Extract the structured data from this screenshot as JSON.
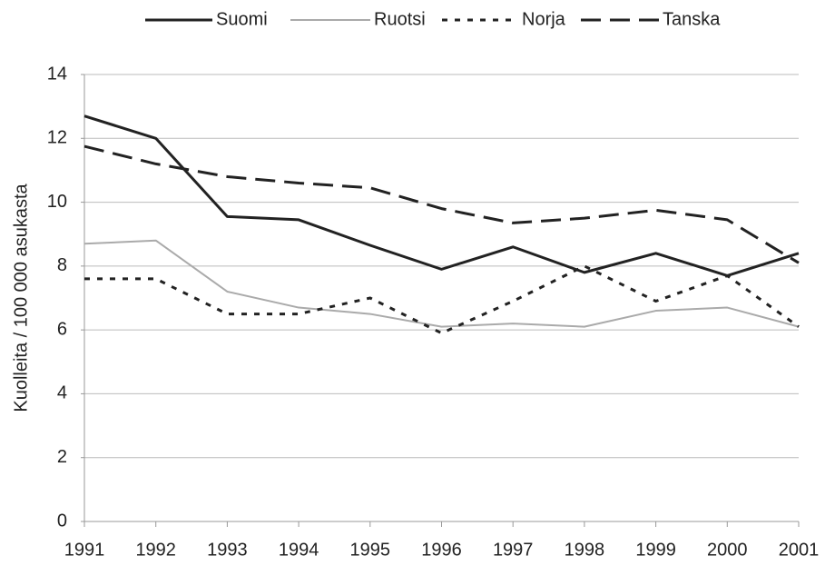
{
  "chart_data": {
    "type": "line",
    "y_label": "Kuolleita / 100 000 asukasta",
    "x": [
      1991,
      1992,
      1993,
      1994,
      1995,
      1996,
      1997,
      1998,
      1999,
      2000,
      2001
    ],
    "xlim": [
      1991,
      2001
    ],
    "xticks": [
      1991,
      1992,
      1993,
      1994,
      1995,
      1996,
      1997,
      1998,
      1999,
      2000,
      2001
    ],
    "ylim": [
      0,
      14
    ],
    "yticks": [
      0,
      2,
      4,
      6,
      8,
      10,
      12,
      14
    ],
    "grid": true,
    "legend": "top",
    "series": [
      {
        "name": "Suomi",
        "color": "#222222",
        "dash": "solid",
        "values": [
          12.7,
          12.0,
          9.55,
          9.45,
          8.65,
          7.9,
          8.6,
          7.8,
          8.4,
          7.7,
          8.4
        ]
      },
      {
        "name": "Ruotsi",
        "color": "#aaaaaa",
        "dash": "solid",
        "values": [
          8.7,
          8.8,
          7.2,
          6.7,
          6.5,
          6.1,
          6.2,
          6.1,
          6.6,
          6.7,
          6.1
        ]
      },
      {
        "name": "Norja",
        "color": "#222222",
        "dash": "dotted",
        "values": [
          7.6,
          7.6,
          6.5,
          6.5,
          7.0,
          5.9,
          6.9,
          8.0,
          6.9,
          7.7,
          6.1
        ]
      },
      {
        "name": "Tanska",
        "color": "#222222",
        "dash": "dashed",
        "values": [
          11.75,
          11.2,
          10.8,
          10.6,
          10.45,
          9.8,
          9.35,
          9.5,
          9.75,
          9.45,
          8.1
        ]
      }
    ]
  }
}
